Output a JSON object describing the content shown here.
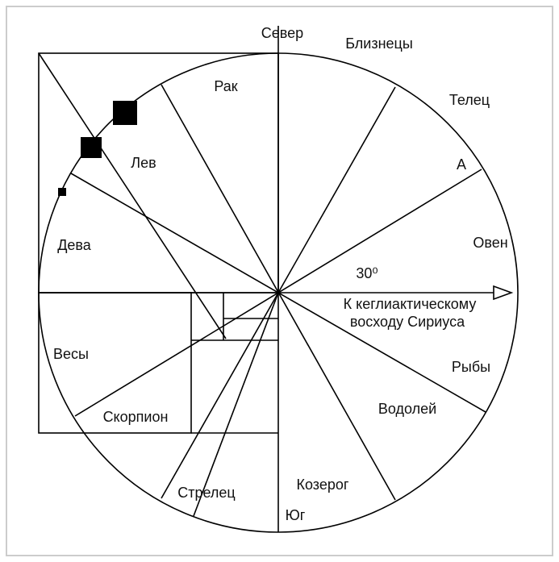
{
  "labels": [
    "Север",
    "Близнецы",
    "Рак",
    "Телец",
    "Лев",
    "А",
    "Дева",
    "Овен",
    "30⁰",
    "К кеглиактическому",
    "восходу Сириуса",
    "Весы",
    "Рыбы",
    "Скорпион",
    "Водолей",
    "Козерог",
    "Стрелец",
    "Юг"
  ]
}
